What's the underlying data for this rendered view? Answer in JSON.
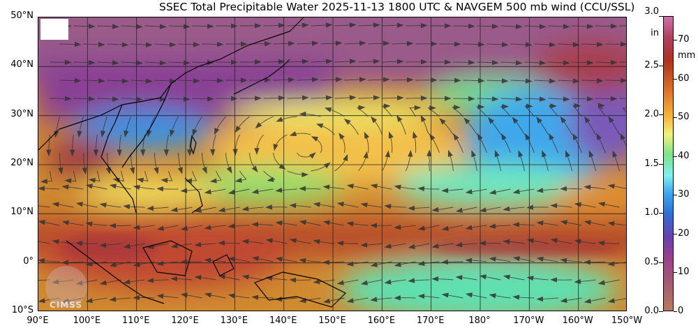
{
  "title": "SSEC Total Precipitable Water  2025-11-13 1800 UTC & NAVGEM 500 mb wind (CCU/SSL)",
  "lat_labels": [
    "50°N",
    "40°N",
    "30°N",
    "20°N",
    "10°N",
    "0°",
    "10°S"
  ],
  "lon_labels": [
    "90°E",
    "100°E",
    "110°E",
    "120°E",
    "130°E",
    "140°E",
    "150°E",
    "160°E",
    "170°E",
    "180°",
    "170°W",
    "160°W",
    "150°W"
  ],
  "colorbar": {
    "in_ticks": [
      "3.0",
      "2.5",
      "2.0",
      "1.5",
      "1.0",
      "0.5",
      "0.0"
    ],
    "in_values": [
      3.0,
      2.5,
      2.0,
      1.5,
      1.0,
      0.5,
      0.0
    ],
    "in_unit": "in",
    "mm_ticks": [
      "70",
      "60",
      "50",
      "40",
      "30",
      "20",
      "10",
      "0"
    ],
    "mm_values": [
      70,
      60,
      50,
      40,
      30,
      20,
      10,
      0
    ],
    "mm_unit": "mm",
    "range_mm": [
      0,
      76.2
    ]
  },
  "watermark": "CIMSS"
}
